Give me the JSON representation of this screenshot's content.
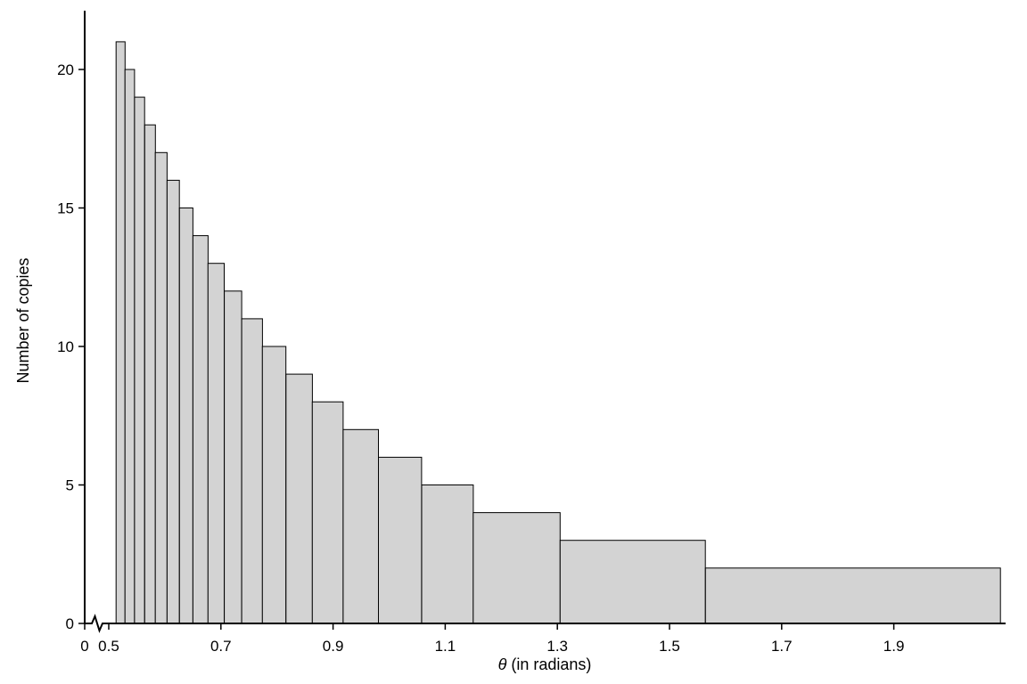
{
  "chart_data": {
    "type": "bar",
    "subtype": "histogram",
    "title": "",
    "xlabel": {
      "full": "θ (in radians)",
      "symbol": "θ",
      "rest": "(in radians)"
    },
    "ylabel": "Number of copies",
    "bin_edges": [
      0.513,
      0.529,
      0.546,
      0.564,
      0.583,
      0.604,
      0.626,
      0.65,
      0.677,
      0.706,
      0.737,
      0.774,
      0.816,
      0.863,
      0.918,
      0.981,
      1.058,
      1.15,
      1.305,
      1.564,
      2.09
    ],
    "values": [
      21,
      20,
      19,
      18,
      17,
      16,
      15,
      14,
      13,
      12,
      11,
      10,
      9,
      8,
      7,
      6,
      5,
      4,
      3,
      2
    ],
    "x_ticks": [
      "0",
      "0.5",
      "0.7",
      "0.9",
      "1.1",
      "1.3",
      "1.5",
      "1.7",
      "1.9"
    ],
    "x_tick_values": [
      0,
      0.5,
      0.7,
      0.9,
      1.1,
      1.3,
      1.5,
      1.7,
      1.9
    ],
    "y_ticks": [
      0,
      5,
      10,
      15,
      20
    ],
    "xlim": [
      0.5,
      2.09
    ],
    "ylim": [
      0,
      22
    ],
    "axis_break_on_x": true,
    "grid": false,
    "legend": null,
    "bar_fill": "#d3d3d3",
    "bar_stroke": "#000000",
    "axis_color": "#000000"
  }
}
